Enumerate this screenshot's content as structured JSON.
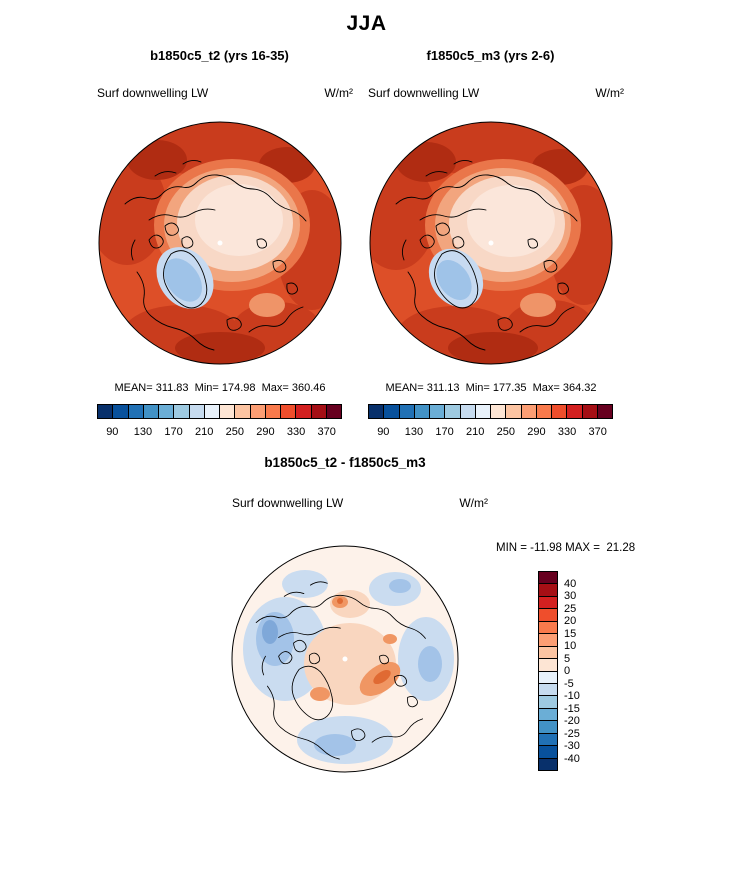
{
  "title": "JJA",
  "panels": [
    {
      "title": "b1850c5_t2 (yrs 16-35)",
      "field": "Surf downwelling LW",
      "units": "W/m²",
      "stats": "MEAN= 311.83  Min= 174.98  Max= 360.46",
      "colorbar": {
        "colors": [
          "#08306b",
          "#08519c",
          "#2171b5",
          "#4292c6",
          "#6baed6",
          "#9ecae1",
          "#c6dbef",
          "#e8f1fa",
          "#fde5d4",
          "#fcc4a2",
          "#fc9e74",
          "#f97a4c",
          "#ef4e2c",
          "#d32020",
          "#a50f15",
          "#67001f"
        ],
        "ticks": [
          "90",
          "130",
          "170",
          "210",
          "250",
          "290",
          "330",
          "370"
        ]
      }
    },
    {
      "title": "f1850c5_m3 (yrs 2-6)",
      "field": "Surf downwelling LW",
      "units": "W/m²",
      "stats": "MEAN= 311.13  Min= 177.35  Max= 364.32",
      "colorbar": {
        "colors": [
          "#08306b",
          "#08519c",
          "#2171b5",
          "#4292c6",
          "#6baed6",
          "#9ecae1",
          "#c6dbef",
          "#e8f1fa",
          "#fde5d4",
          "#fcc4a2",
          "#fc9e74",
          "#f97a4c",
          "#ef4e2c",
          "#d32020",
          "#a50f15",
          "#67001f"
        ],
        "ticks": [
          "90",
          "130",
          "170",
          "210",
          "250",
          "290",
          "330",
          "370"
        ]
      }
    }
  ],
  "diff": {
    "title": "b1850c5_t2 - f1850c5_m3",
    "field": "Surf downwelling LW",
    "units": "W/m²",
    "stats": "MIN = -11.98 MAX =  21.28",
    "colorbar": {
      "colors": [
        "#67001f",
        "#a50f15",
        "#d32020",
        "#ef4e2c",
        "#f97a4c",
        "#fc9e74",
        "#fcc4a2",
        "#fde5d4",
        "#e8f1fa",
        "#c6dbef",
        "#9ecae1",
        "#6baed6",
        "#4292c6",
        "#2171b5",
        "#08519c",
        "#08306b"
      ],
      "ticks": [
        "40",
        "30",
        "25",
        "20",
        "15",
        "10",
        "5",
        "0",
        "-5",
        "-10",
        "-15",
        "-20",
        "-25",
        "-30",
        "-40"
      ]
    }
  },
  "chart_data": [
    {
      "type": "heatmap",
      "title": "b1850c5_t2 (yrs 16-35)",
      "season": "JJA",
      "variable": "Surf downwelling LW",
      "units": "W/m²",
      "projection": "north polar stereographic map",
      "stats": {
        "mean": 311.83,
        "min": 174.98,
        "max": 360.46
      },
      "colorbar": {
        "orientation": "horizontal",
        "ticks": [
          90,
          130,
          170,
          210,
          250,
          290,
          330,
          370
        ],
        "range": [
          70,
          390
        ],
        "n_colors": 16,
        "palette": "blue-to-red"
      }
    },
    {
      "type": "heatmap",
      "title": "f1850c5_m3 (yrs 2-6)",
      "season": "JJA",
      "variable": "Surf downwelling LW",
      "units": "W/m²",
      "projection": "north polar stereographic map",
      "stats": {
        "mean": 311.13,
        "min": 177.35,
        "max": 364.32
      },
      "colorbar": {
        "orientation": "horizontal",
        "ticks": [
          90,
          130,
          170,
          210,
          250,
          290,
          330,
          370
        ],
        "range": [
          70,
          390
        ],
        "n_colors": 16,
        "palette": "blue-to-red"
      }
    },
    {
      "type": "heatmap",
      "title": "b1850c5_t2 - f1850c5_m3",
      "season": "JJA",
      "variable": "Surf downwelling LW",
      "units": "W/m²",
      "projection": "north polar stereographic map",
      "stats": {
        "min": -11.98,
        "max": 21.28
      },
      "colorbar": {
        "orientation": "vertical",
        "ticks": [
          40,
          30,
          25,
          20,
          15,
          10,
          5,
          0,
          -5,
          -10,
          -15,
          -20,
          -25,
          -30,
          -40
        ],
        "range": [
          -45,
          45
        ],
        "n_colors": 16,
        "palette": "red-to-blue"
      }
    }
  ]
}
